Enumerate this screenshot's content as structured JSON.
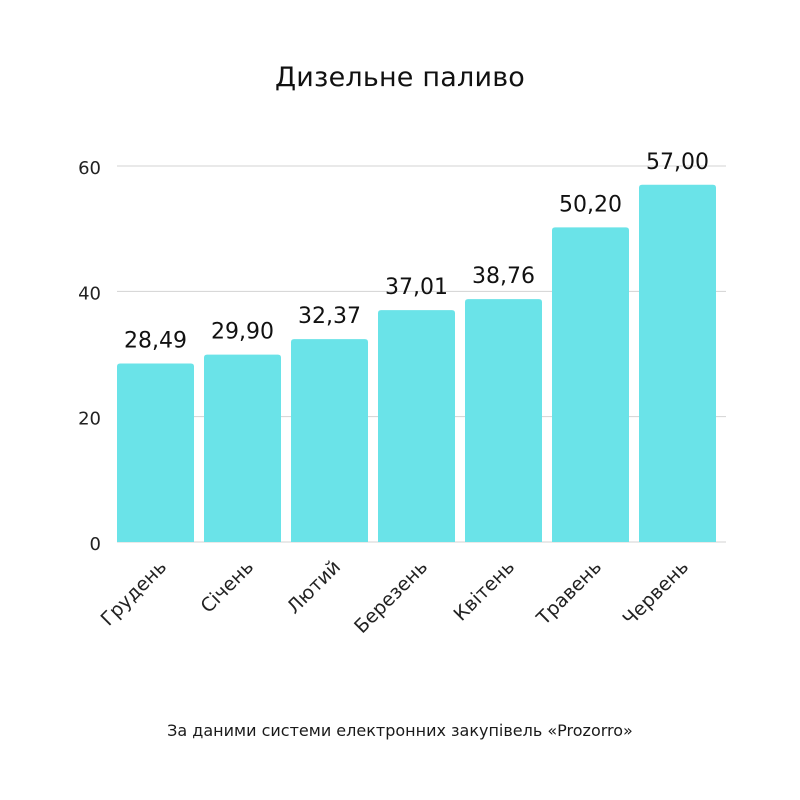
{
  "page": {
    "source_note": "За даними системи електронних закупівель «Prozorro»"
  },
  "chart_data": {
    "type": "bar",
    "title": "Дизельне паливо",
    "xlabel": "",
    "ylabel": "",
    "categories": [
      "Грудень",
      "Січень",
      "Лютий",
      "Березень",
      "Квітень",
      "Травень",
      "Червень"
    ],
    "values": [
      28.49,
      29.9,
      32.37,
      37.01,
      38.76,
      50.2,
      57.0
    ],
    "data_labels": [
      "28,49",
      "29,90",
      "32,37",
      "37,01",
      "38,76",
      "50,20",
      "57,00"
    ],
    "ylim": [
      0,
      60
    ],
    "yticks": [
      0,
      20,
      40,
      60
    ],
    "grid": true,
    "legend": "none",
    "bar_color": "#6ae3e8",
    "grid_color": "#d3d3d3"
  }
}
